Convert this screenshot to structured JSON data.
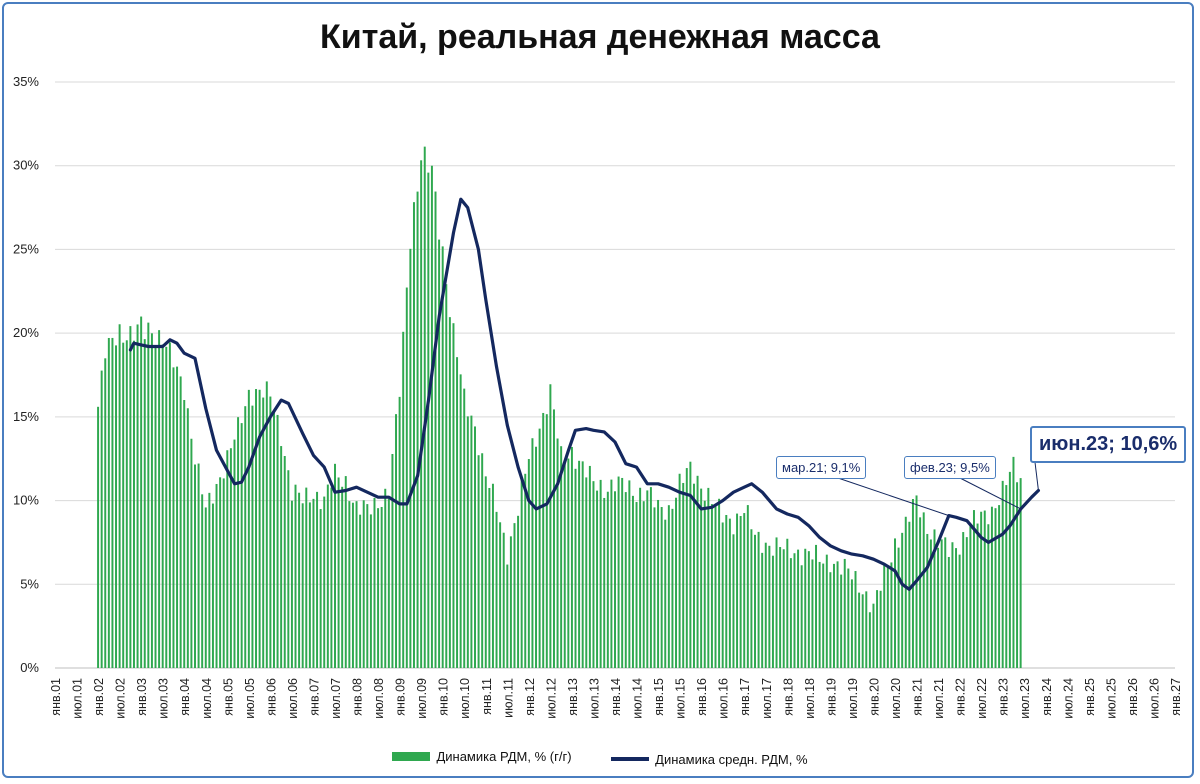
{
  "chart_data": {
    "type": "bar+line",
    "title": "Китай, реальная денежная масса",
    "ylim": [
      0,
      35
    ],
    "y_ticks": [
      "0%",
      "5%",
      "10%",
      "15%",
      "20%",
      "25%",
      "30%",
      "35%"
    ],
    "x_ticks": [
      "янв.01",
      "июл.01",
      "янв.02",
      "июл.02",
      "янв.03",
      "июл.03",
      "янв.04",
      "июл.04",
      "янв.05",
      "июл.05",
      "янв.06",
      "июл.06",
      "янв.07",
      "июл.07",
      "янв.08",
      "июл.08",
      "янв.09",
      "июл.09",
      "янв.10",
      "июл.10",
      "янв.11",
      "июл.11",
      "янв.12",
      "июл.12",
      "янв.13",
      "июл.13",
      "янв.14",
      "июл.14",
      "янв.15",
      "июл.15",
      "янв.16",
      "июл.16",
      "янв.17",
      "июл.17",
      "янв.18",
      "июл.18",
      "янв.19",
      "июл.19",
      "янв.20",
      "июл.20",
      "янв.21",
      "июл.21",
      "янв.22",
      "июл.22",
      "янв.23",
      "июл.23",
      "янв.24",
      "июл.24",
      "янв.25",
      "июл.25",
      "янв.26",
      "июл.26",
      "янв.27"
    ],
    "grid": true,
    "legend_position": "bottom",
    "series": [
      {
        "name": "Динамика РДМ, % (г/г)",
        "kind": "bar",
        "color": "#2fa84f",
        "points": [
          [
            2002.0,
            15.6
          ],
          [
            2002.17,
            18.8
          ],
          [
            2002.5,
            20.2
          ],
          [
            2002.83,
            19.8
          ],
          [
            2003.0,
            20.2
          ],
          [
            2003.25,
            20.3
          ],
          [
            2003.5,
            19.6
          ],
          [
            2003.75,
            18.2
          ],
          [
            2004.0,
            16.8
          ],
          [
            2004.25,
            12.5
          ],
          [
            2004.5,
            9.4
          ],
          [
            2004.75,
            11.0
          ],
          [
            2005.0,
            12.5
          ],
          [
            2005.25,
            14.2
          ],
          [
            2005.5,
            16.5
          ],
          [
            2005.75,
            16.5
          ],
          [
            2006.0,
            16.2
          ],
          [
            2006.25,
            14.0
          ],
          [
            2006.5,
            10.5
          ],
          [
            2006.75,
            10.0
          ],
          [
            2007.0,
            10.5
          ],
          [
            2007.25,
            10.0
          ],
          [
            2007.5,
            11.5
          ],
          [
            2007.75,
            11.2
          ],
          [
            2008.0,
            9.5
          ],
          [
            2008.25,
            9.4
          ],
          [
            2008.5,
            10.0
          ],
          [
            2008.75,
            10.5
          ],
          [
            2009.0,
            16.5
          ],
          [
            2009.25,
            26.0
          ],
          [
            2009.5,
            30.5
          ],
          [
            2009.75,
            29.5
          ],
          [
            2010.0,
            25.0
          ],
          [
            2010.25,
            20.0
          ],
          [
            2010.5,
            16.0
          ],
          [
            2010.75,
            14.5
          ],
          [
            2011.0,
            11.5
          ],
          [
            2011.25,
            9.5
          ],
          [
            2011.5,
            7.0
          ],
          [
            2011.75,
            9.5
          ],
          [
            2012.0,
            12.5
          ],
          [
            2012.25,
            14.5
          ],
          [
            2012.5,
            16.5
          ],
          [
            2012.75,
            12.5
          ],
          [
            2013.0,
            13.0
          ],
          [
            2013.25,
            12.0
          ],
          [
            2013.5,
            11.0
          ],
          [
            2013.75,
            10.8
          ],
          [
            2014.0,
            11.0
          ],
          [
            2014.25,
            10.8
          ],
          [
            2014.5,
            10.5
          ],
          [
            2014.75,
            10.5
          ],
          [
            2015.0,
            9.5
          ],
          [
            2015.25,
            9.5
          ],
          [
            2015.5,
            11.0
          ],
          [
            2015.75,
            11.8
          ],
          [
            2016.0,
            11.0
          ],
          [
            2016.25,
            10.0
          ],
          [
            2016.5,
            9.0
          ],
          [
            2016.75,
            8.8
          ],
          [
            2017.0,
            9.5
          ],
          [
            2017.25,
            7.8
          ],
          [
            2017.5,
            7.5
          ],
          [
            2017.75,
            7.2
          ],
          [
            2018.0,
            7.0
          ],
          [
            2018.25,
            7.0
          ],
          [
            2018.5,
            6.8
          ],
          [
            2018.75,
            6.4
          ],
          [
            2019.0,
            6.5
          ],
          [
            2019.25,
            6.0
          ],
          [
            2019.5,
            5.5
          ],
          [
            2019.75,
            4.8
          ],
          [
            2020.0,
            3.5
          ],
          [
            2020.25,
            5.5
          ],
          [
            2020.5,
            7.5
          ],
          [
            2020.75,
            8.5
          ],
          [
            2021.0,
            10.0
          ],
          [
            2021.25,
            8.5
          ],
          [
            2021.5,
            7.5
          ],
          [
            2021.75,
            7.0
          ],
          [
            2022.0,
            7.5
          ],
          [
            2022.25,
            8.5
          ],
          [
            2022.5,
            9.0
          ],
          [
            2022.75,
            9.5
          ],
          [
            2023.0,
            10.5
          ],
          [
            2023.25,
            12.0
          ],
          [
            2023.42,
            11.3
          ]
        ]
      },
      {
        "name": "Динамика средн. РДМ, %",
        "kind": "line",
        "color": "#14285f",
        "points": [
          [
            2002.75,
            19.0
          ],
          [
            2002.83,
            19.4
          ],
          [
            2003.0,
            19.3
          ],
          [
            2003.17,
            19.2
          ],
          [
            2003.5,
            19.2
          ],
          [
            2003.67,
            19.6
          ],
          [
            2003.83,
            19.4
          ],
          [
            2004.0,
            18.8
          ],
          [
            2004.25,
            18.5
          ],
          [
            2004.5,
            15.5
          ],
          [
            2004.75,
            13.0
          ],
          [
            2005.0,
            11.8
          ],
          [
            2005.17,
            11.0
          ],
          [
            2005.33,
            11.1
          ],
          [
            2005.5,
            12.0
          ],
          [
            2005.75,
            13.8
          ],
          [
            2006.0,
            15.0
          ],
          [
            2006.25,
            16.0
          ],
          [
            2006.42,
            15.8
          ],
          [
            2006.75,
            14.0
          ],
          [
            2007.0,
            12.7
          ],
          [
            2007.25,
            12.0
          ],
          [
            2007.5,
            10.5
          ],
          [
            2007.75,
            10.6
          ],
          [
            2008.0,
            10.8
          ],
          [
            2008.25,
            10.5
          ],
          [
            2008.5,
            10.2
          ],
          [
            2008.75,
            10.2
          ],
          [
            2009.0,
            9.8
          ],
          [
            2009.17,
            9.8
          ],
          [
            2009.42,
            11.5
          ],
          [
            2009.67,
            16.0
          ],
          [
            2009.92,
            21.0
          ],
          [
            2010.25,
            26.0
          ],
          [
            2010.42,
            28.0
          ],
          [
            2010.58,
            27.5
          ],
          [
            2010.83,
            25.0
          ],
          [
            2011.0,
            22.0
          ],
          [
            2011.25,
            18.0
          ],
          [
            2011.5,
            14.5
          ],
          [
            2011.75,
            12.0
          ],
          [
            2012.0,
            10.0
          ],
          [
            2012.17,
            9.5
          ],
          [
            2012.42,
            9.8
          ],
          [
            2012.67,
            11.0
          ],
          [
            2012.92,
            13.0
          ],
          [
            2013.08,
            14.2
          ],
          [
            2013.33,
            14.3
          ],
          [
            2013.5,
            14.2
          ],
          [
            2013.75,
            14.1
          ],
          [
            2014.0,
            13.5
          ],
          [
            2014.25,
            12.2
          ],
          [
            2014.5,
            12.0
          ],
          [
            2014.75,
            11.0
          ],
          [
            2015.0,
            11.0
          ],
          [
            2015.25,
            10.8
          ],
          [
            2015.5,
            10.5
          ],
          [
            2015.75,
            10.3
          ],
          [
            2016.0,
            9.5
          ],
          [
            2016.25,
            9.6
          ],
          [
            2016.5,
            10.0
          ],
          [
            2016.75,
            10.5
          ],
          [
            2017.0,
            10.8
          ],
          [
            2017.17,
            11.0
          ],
          [
            2017.42,
            10.5
          ],
          [
            2017.75,
            9.5
          ],
          [
            2018.0,
            9.2
          ],
          [
            2018.25,
            9.0
          ],
          [
            2018.5,
            8.5
          ],
          [
            2018.75,
            7.8
          ],
          [
            2019.0,
            7.3
          ],
          [
            2019.25,
            7.0
          ],
          [
            2019.5,
            6.8
          ],
          [
            2019.75,
            6.7
          ],
          [
            2020.0,
            6.5
          ],
          [
            2020.25,
            6.2
          ],
          [
            2020.5,
            5.8
          ],
          [
            2020.67,
            5.0
          ],
          [
            2020.83,
            4.7
          ],
          [
            2021.0,
            5.2
          ],
          [
            2021.25,
            6.0
          ],
          [
            2021.5,
            7.5
          ],
          [
            2021.75,
            9.1
          ],
          [
            2021.92,
            9.0
          ],
          [
            2022.17,
            8.8
          ],
          [
            2022.5,
            7.8
          ],
          [
            2022.67,
            7.5
          ],
          [
            2023.0,
            8.0
          ],
          [
            2023.17,
            8.5
          ],
          [
            2023.42,
            9.5
          ],
          [
            2023.67,
            10.2
          ],
          [
            2023.83,
            10.6
          ]
        ]
      }
    ],
    "annotations": [
      {
        "label": "мар.21; 9,1%",
        "x": 2021.75,
        "y": 9.1
      },
      {
        "label": "фев.23; 9,5%",
        "x": 2023.42,
        "y": 9.5
      },
      {
        "label": "июн.23; 10,6%",
        "x": 2023.83,
        "y": 10.6
      }
    ]
  }
}
